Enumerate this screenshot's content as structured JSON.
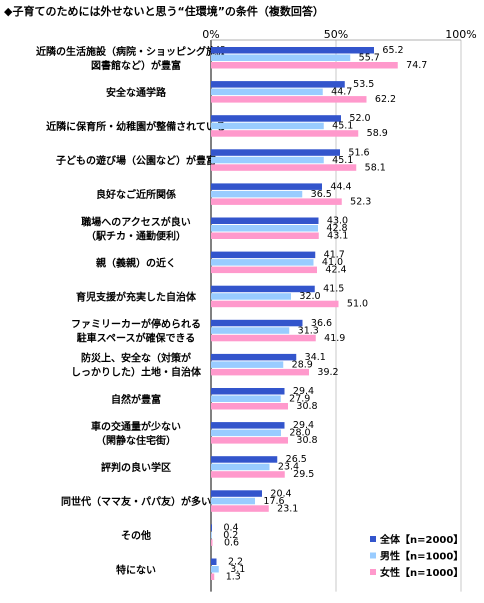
{
  "chart_data": {
    "type": "bar",
    "orientation": "horizontal",
    "title": "◆子育てのためには外せないと思う“住環境”の条件（複数回答）",
    "xlim": [
      0,
      100
    ],
    "tick_labels": [
      "0%",
      "50%",
      "100%"
    ],
    "tick_values": [
      0,
      50,
      100
    ],
    "grid": true,
    "legend_position": "bottom-right",
    "categories": [
      [
        "近隣の生活施設（病院・ショッピング施設・",
        "図書館など）が豊富"
      ],
      [
        "安全な通学路"
      ],
      [
        "近隣に保育所・幼稚園が整備されている"
      ],
      [
        "子どもの遊び場（公園など）が豊富"
      ],
      [
        "良好なご近所関係"
      ],
      [
        "職場へのアクセスが良い",
        "（駅チカ・通勤便利）"
      ],
      [
        "親（義親）の近く"
      ],
      [
        "育児支援が充実した自治体"
      ],
      [
        "ファミリーカーが停められる",
        "駐車スペースが確保できる"
      ],
      [
        "防災上、安全な（対策が",
        "しっかりした）土地・自治体"
      ],
      [
        "自然が豊富"
      ],
      [
        "車の交通量が少ない",
        "（閑静な住宅街）"
      ],
      [
        "評判の良い学区"
      ],
      [
        "同世代（ママ友・パパ友）が多い"
      ],
      [
        "その他"
      ],
      [
        "特にない"
      ]
    ],
    "series": [
      {
        "name": "全体【n=2000】",
        "color": "#3355cc",
        "values": [
          65.2,
          53.5,
          52.0,
          51.6,
          44.4,
          43.0,
          41.7,
          41.5,
          36.6,
          34.1,
          29.4,
          29.4,
          26.5,
          20.4,
          0.4,
          2.2
        ]
      },
      {
        "name": "男性【n=1000】",
        "color": "#99ccff",
        "values": [
          55.7,
          44.7,
          45.1,
          45.1,
          36.5,
          42.8,
          41.0,
          32.0,
          31.3,
          28.9,
          27.9,
          28.0,
          23.4,
          17.6,
          0.2,
          3.1
        ]
      },
      {
        "name": "女性【n=1000】",
        "color": "#ff99cc",
        "values": [
          74.7,
          62.2,
          58.9,
          58.1,
          52.3,
          43.1,
          42.4,
          51.0,
          41.9,
          39.2,
          30.8,
          30.8,
          29.5,
          23.1,
          0.6,
          1.3
        ]
      }
    ]
  }
}
